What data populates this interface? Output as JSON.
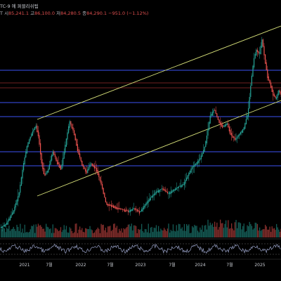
{
  "header": {
    "symbol_title": "TC-9 에 퍼블리쉬됨",
    "ohlc": {
      "prefix": "T",
      "open_label": "시",
      "open": "85,241.1",
      "high_label": "고",
      "high": "86,100.0",
      "low_label": "저",
      "low": "84,280.5",
      "close_label": "종",
      "close": "84,290.1",
      "change": "−951.0 (−1.12%)"
    }
  },
  "time_axis": {
    "labels": [
      "2021",
      "7월",
      "2022",
      "7월",
      "2023",
      "7월",
      "2024",
      "7월",
      "2025"
    ]
  },
  "colors": {
    "background": "#000000",
    "up": "#26a69a",
    "down": "#ef5350",
    "channel": "#d8e27a",
    "level_blue": "#3f57ff",
    "level_red": "#a83232",
    "oscillator": "#9aa3c9"
  }
}
